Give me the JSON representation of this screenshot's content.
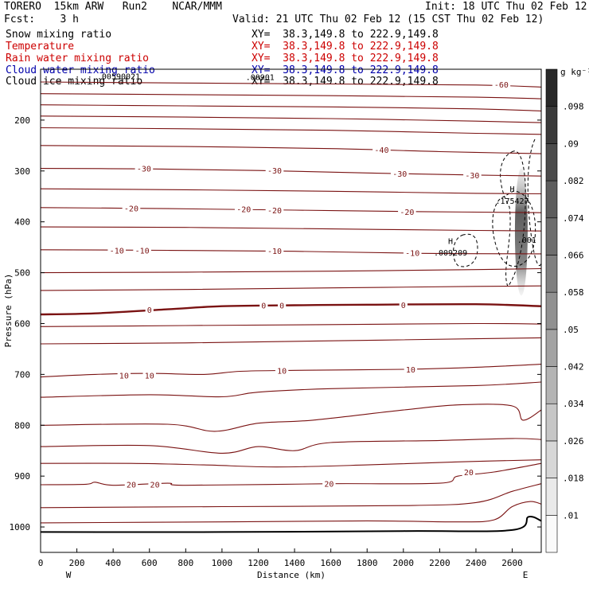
{
  "header": {
    "model": "TORERO  15km ARW   Run2    NCAR/MMM",
    "init": "Init: 18 UTC Thu 02 Feb 12",
    "fcst": "Fcst:    3 h",
    "valid": "Valid: 21 UTC Thu 02 Feb 12 (15 CST Thu 02 Feb 12)"
  },
  "fields": [
    {
      "name": "Snow mixing ratio",
      "xy": "XY=  38.3,149.8 to 222.9,149.8",
      "color": "#000000"
    },
    {
      "name": "Temperature",
      "xy": "XY=  38.3,149.8 to 222.9,149.8",
      "color": "#cc0000"
    },
    {
      "name": "Rain water mixing ratio",
      "xy": "XY=  38.3,149.8 to 222.9,149.8",
      "color": "#cc0000"
    },
    {
      "name": "Cloud water mixing ratio",
      "xy": "XY=  38.3,149.8 to 222.9,149.8",
      "color": "#0000aa"
    },
    {
      "name": "Cloud ice mixing ratio",
      "xy": "XY=  38.3,149.8 to 222.9,149.8",
      "color": "#000000"
    }
  ],
  "chart_data": {
    "type": "contour-cross-section",
    "xlabel": "Distance (km)",
    "ylabel": "Pressure (hPa)",
    "xlim": [
      0,
      2760
    ],
    "ylim": [
      1050,
      100
    ],
    "x_ticks": [
      0,
      200,
      400,
      600,
      800,
      1000,
      1200,
      1400,
      1600,
      1800,
      2000,
      2200,
      2400,
      2600
    ],
    "y_ticks": [
      200,
      300,
      400,
      500,
      600,
      700,
      800,
      900,
      1000
    ],
    "x_end_labels": {
      "left": "W",
      "right": "E"
    },
    "colorbar": {
      "unit": "g kg⁻¹",
      "levels": [
        0.01,
        0.018,
        0.026,
        0.034,
        0.042,
        0.05,
        0.058,
        0.066,
        0.074,
        0.082,
        0.09,
        0.098
      ],
      "labels": [
        ".01",
        ".018",
        ".026",
        ".034",
        ".042",
        ".05",
        ".058",
        ".066",
        ".074",
        ".082",
        ".09",
        ".098"
      ]
    },
    "annotations": [
      {
        "text": ".00590021",
        "x": 430,
        "p": 113
      },
      {
        "text": ".00901",
        "x": 1210,
        "p": 115
      },
      {
        "text": "H",
        "x": 2600,
        "p": 335
      },
      {
        "text": ".175427",
        "x": 2600,
        "p": 358
      },
      {
        "text": "H",
        "x": 2260,
        "p": 437
      },
      {
        "text": ".009209",
        "x": 2260,
        "p": 460
      },
      {
        "text": ".001",
        "x": 2680,
        "p": 435
      }
    ],
    "temperature_label_color": "#8b1a1a",
    "temperature_contours": [
      {
        "level": "-60",
        "points": [
          [
            0,
            125
          ],
          [
            800,
            127
          ],
          [
            1600,
            129
          ],
          [
            2400,
            131
          ],
          [
            2760,
            135
          ]
        ],
        "labels": [
          {
            "x": 2540,
            "p": 130
          }
        ]
      },
      {
        "level": "",
        "points": [
          [
            0,
            148
          ],
          [
            800,
            150
          ],
          [
            1600,
            152
          ],
          [
            2400,
            155
          ],
          [
            2760,
            158
          ]
        ],
        "labels": []
      },
      {
        "level": "",
        "points": [
          [
            0,
            170
          ],
          [
            800,
            172
          ],
          [
            1600,
            174
          ],
          [
            2400,
            178
          ],
          [
            2760,
            182
          ]
        ],
        "labels": []
      },
      {
        "level": "",
        "points": [
          [
            0,
            192
          ],
          [
            800,
            194
          ],
          [
            1600,
            197
          ],
          [
            2400,
            202
          ],
          [
            2760,
            205
          ]
        ],
        "labels": []
      },
      {
        "level": "",
        "points": [
          [
            0,
            215
          ],
          [
            800,
            217
          ],
          [
            1600,
            220
          ],
          [
            2400,
            226
          ],
          [
            2760,
            228
          ]
        ],
        "labels": []
      },
      {
        "level": "-40",
        "points": [
          [
            0,
            250
          ],
          [
            800,
            252
          ],
          [
            1600,
            256
          ],
          [
            2200,
            262
          ],
          [
            2760,
            266
          ]
        ],
        "labels": [
          {
            "x": 1880,
            "p": 258
          }
        ]
      },
      {
        "level": "-30",
        "points": [
          [
            0,
            295
          ],
          [
            600,
            296
          ],
          [
            1200,
            299
          ],
          [
            1800,
            304
          ],
          [
            2400,
            308
          ],
          [
            2760,
            310
          ]
        ],
        "labels": [
          {
            "x": 570,
            "p": 295
          },
          {
            "x": 1290,
            "p": 299
          },
          {
            "x": 1980,
            "p": 305
          },
          {
            "x": 2380,
            "p": 308
          }
        ]
      },
      {
        "level": "",
        "points": [
          [
            0,
            335
          ],
          [
            800,
            337
          ],
          [
            1600,
            340
          ],
          [
            2400,
            344
          ],
          [
            2760,
            345
          ]
        ],
        "labels": []
      },
      {
        "level": "-20",
        "points": [
          [
            0,
            372
          ],
          [
            700,
            374
          ],
          [
            1400,
            377
          ],
          [
            2100,
            380
          ],
          [
            2760,
            382
          ]
        ],
        "labels": [
          {
            "x": 500,
            "p": 373
          },
          {
            "x": 1120,
            "p": 375
          },
          {
            "x": 1290,
            "p": 377
          },
          {
            "x": 2020,
            "p": 380
          }
        ]
      },
      {
        "level": "",
        "points": [
          [
            0,
            410
          ],
          [
            800,
            411
          ],
          [
            1600,
            414
          ],
          [
            2400,
            417
          ],
          [
            2760,
            418
          ]
        ],
        "labels": []
      },
      {
        "level": "-10",
        "points": [
          [
            0,
            455
          ],
          [
            700,
            456
          ],
          [
            1400,
            458
          ],
          [
            2100,
            462
          ],
          [
            2760,
            463
          ]
        ],
        "labels": [
          {
            "x": 420,
            "p": 456
          },
          {
            "x": 560,
            "p": 456
          },
          {
            "x": 1290,
            "p": 457
          },
          {
            "x": 2050,
            "p": 461
          }
        ]
      },
      {
        "level": "",
        "points": [
          [
            0,
            500
          ],
          [
            800,
            499
          ],
          [
            1600,
            497
          ],
          [
            2400,
            494
          ],
          [
            2760,
            492
          ]
        ],
        "labels": []
      },
      {
        "level": "",
        "points": [
          [
            0,
            535
          ],
          [
            800,
            533
          ],
          [
            1600,
            530
          ],
          [
            2400,
            527
          ],
          [
            2760,
            526
          ]
        ],
        "labels": []
      },
      {
        "level": "0",
        "points": [
          [
            0,
            582
          ],
          [
            300,
            580
          ],
          [
            700,
            572
          ],
          [
            1000,
            566
          ],
          [
            1400,
            564
          ],
          [
            1800,
            563
          ],
          [
            2400,
            562
          ],
          [
            2760,
            566
          ]
        ],
        "labels": [
          {
            "x": 600,
            "p": 573
          },
          {
            "x": 1230,
            "p": 564
          },
          {
            "x": 1330,
            "p": 564
          },
          {
            "x": 2000,
            "p": 563
          }
        ]
      },
      {
        "level": "",
        "points": [
          [
            0,
            606
          ],
          [
            800,
            604
          ],
          [
            1600,
            602
          ],
          [
            2400,
            600
          ],
          [
            2760,
            601
          ]
        ],
        "labels": []
      },
      {
        "level": "",
        "points": [
          [
            0,
            640
          ],
          [
            800,
            638
          ],
          [
            1600,
            634
          ],
          [
            2400,
            630
          ],
          [
            2760,
            628
          ]
        ],
        "labels": []
      },
      {
        "level": "10",
        "points": [
          [
            0,
            705
          ],
          [
            300,
            700
          ],
          [
            600,
            698
          ],
          [
            900,
            700
          ],
          [
            1100,
            694
          ],
          [
            1400,
            692
          ],
          [
            2000,
            690
          ],
          [
            2400,
            686
          ],
          [
            2760,
            680
          ]
        ],
        "labels": [
          {
            "x": 460,
            "p": 702
          },
          {
            "x": 600,
            "p": 702
          },
          {
            "x": 1330,
            "p": 692
          },
          {
            "x": 2040,
            "p": 690
          }
        ]
      },
      {
        "level": "",
        "points": [
          [
            0,
            745
          ],
          [
            600,
            740
          ],
          [
            1000,
            744
          ],
          [
            1200,
            735
          ],
          [
            1600,
            728
          ],
          [
            2400,
            722
          ],
          [
            2760,
            715
          ]
        ],
        "labels": []
      },
      {
        "level": "",
        "points": [
          [
            0,
            800
          ],
          [
            700,
            798
          ],
          [
            960,
            812
          ],
          [
            1200,
            796
          ],
          [
            1500,
            790
          ],
          [
            2000,
            770
          ],
          [
            2300,
            760
          ],
          [
            2600,
            762
          ],
          [
            2660,
            790
          ],
          [
            2760,
            770
          ]
        ],
        "labels": []
      },
      {
        "level": "",
        "points": [
          [
            0,
            842
          ],
          [
            600,
            840
          ],
          [
            1000,
            855
          ],
          [
            1200,
            842
          ],
          [
            1400,
            850
          ],
          [
            1600,
            834
          ],
          [
            2200,
            830
          ],
          [
            2600,
            826
          ],
          [
            2760,
            828
          ]
        ],
        "labels": []
      },
      {
        "level": "",
        "points": [
          [
            0,
            875
          ],
          [
            500,
            875
          ],
          [
            900,
            878
          ],
          [
            1300,
            882
          ],
          [
            1800,
            878
          ],
          [
            2300,
            872
          ],
          [
            2760,
            868
          ]
        ],
        "labels": []
      },
      {
        "level": "20",
        "points": [
          [
            0,
            917
          ],
          [
            250,
            916
          ],
          [
            300,
            912
          ],
          [
            400,
            918
          ],
          [
            700,
            914
          ],
          [
            800,
            918
          ],
          [
            1600,
            915
          ],
          [
            2200,
            914
          ],
          [
            2300,
            900
          ],
          [
            2500,
            892
          ],
          [
            2760,
            875
          ]
        ],
        "labels": [
          {
            "x": 500,
            "p": 916
          },
          {
            "x": 630,
            "p": 916
          },
          {
            "x": 1590,
            "p": 915
          },
          {
            "x": 2360,
            "p": 892
          }
        ]
      },
      {
        "level": "",
        "points": [
          [
            0,
            962
          ],
          [
            1000,
            960
          ],
          [
            2000,
            958
          ],
          [
            2400,
            952
          ],
          [
            2600,
            930
          ],
          [
            2760,
            915
          ]
        ],
        "labels": []
      },
      {
        "level": "",
        "points": [
          [
            0,
            992
          ],
          [
            1000,
            990
          ],
          [
            1800,
            988
          ],
          [
            2300,
            990
          ],
          [
            2500,
            986
          ],
          [
            2600,
            960
          ],
          [
            2700,
            950
          ],
          [
            2760,
            955
          ]
        ],
        "labels": []
      }
    ],
    "ground": {
      "points": [
        [
          0,
          1010
        ],
        [
          1000,
          1010
        ],
        [
          2000,
          1008
        ],
        [
          2600,
          1006
        ],
        [
          2690,
          980
        ],
        [
          2760,
          988
        ]
      ]
    }
  }
}
